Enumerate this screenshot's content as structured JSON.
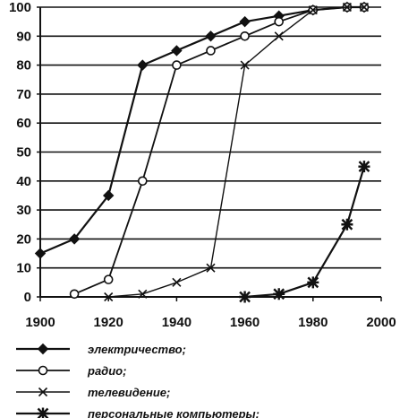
{
  "chart_data": {
    "type": "line",
    "title": "",
    "xlabel": "",
    "ylabel": "",
    "xlim": [
      1900,
      2000
    ],
    "ylim": [
      0,
      100
    ],
    "x_ticks": [
      "1900",
      "1920",
      "1940",
      "1960",
      "1980",
      "2000"
    ],
    "y_ticks": [
      "0",
      "10",
      "20",
      "30",
      "40",
      "50",
      "60",
      "70",
      "80",
      "90",
      "100"
    ],
    "grid": "horizontal",
    "legend_position": "bottom",
    "series": [
      {
        "name": "электричество;",
        "marker": "diamond",
        "x": [
          1900,
          1910,
          1920,
          1930,
          1940,
          1950,
          1960,
          1970,
          1980,
          1990,
          1995
        ],
        "y": [
          15,
          20,
          35,
          80,
          85,
          90,
          95,
          97,
          99,
          100,
          100
        ]
      },
      {
        "name": "радио;",
        "marker": "circle",
        "x": [
          1910,
          1920,
          1930,
          1940,
          1950,
          1960,
          1970,
          1980,
          1990,
          1995
        ],
        "y": [
          1,
          6,
          40,
          80,
          85,
          90,
          95,
          99,
          100,
          100
        ]
      },
      {
        "name": "телевидение;",
        "marker": "x",
        "x": [
          1920,
          1930,
          1940,
          1950,
          1960,
          1970,
          1980,
          1990,
          1995
        ],
        "y": [
          0,
          1,
          5,
          10,
          80,
          90,
          99,
          100,
          100
        ]
      },
      {
        "name": "персональные компьютеры;",
        "marker": "star",
        "x": [
          1960,
          1970,
          1980,
          1990,
          1995
        ],
        "y": [
          0,
          1,
          5,
          25,
          45
        ]
      }
    ]
  }
}
